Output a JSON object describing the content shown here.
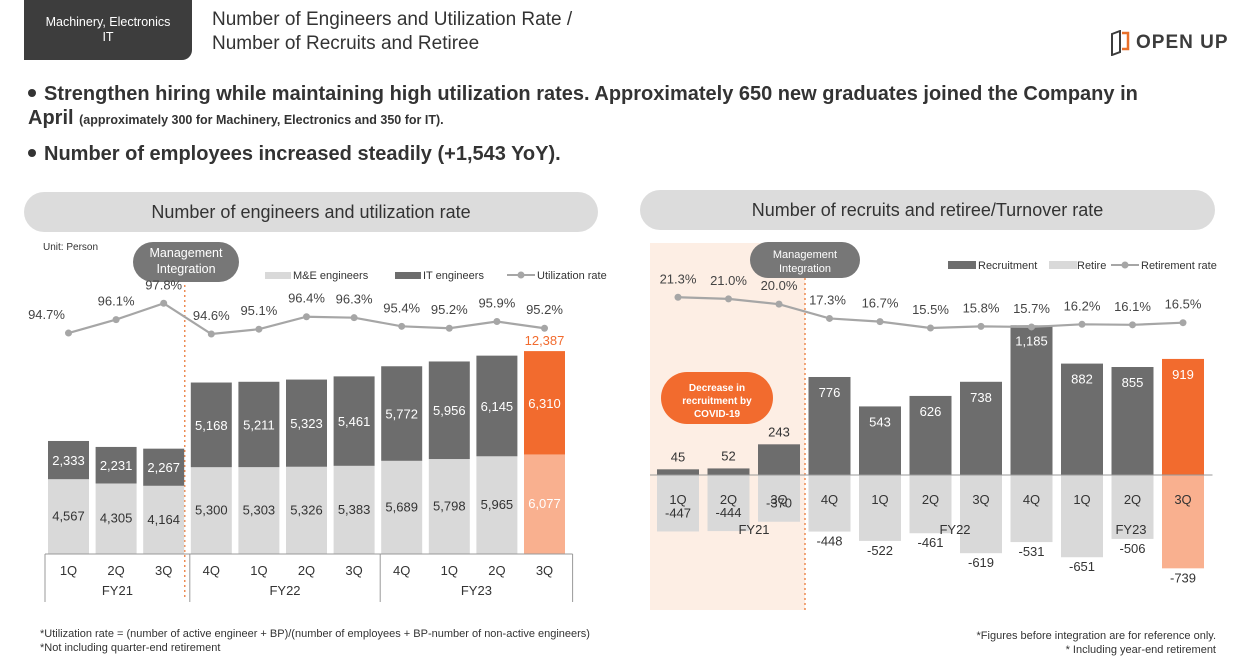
{
  "header": {
    "segment": "Machinery, Electronics\nIT",
    "title_line1": "Number of Engineers and Utilization Rate /",
    "title_line2": "Number of Recruits and Retiree",
    "logo": "OPEN UP"
  },
  "bullets": {
    "b1_main": "Strengthen hiring while maintaining high utilization rates. Approximately 650 new graduates joined the Company in",
    "b1_cont": "April",
    "b1_small": "(approximately 300 for Machinery, Electronics and 350 for IT).",
    "b2": "Number of employees increased steadily (+1,543 YoY)."
  },
  "left_panel": {
    "title": "Number of engineers and utilization rate",
    "unit": "Unit: Person",
    "mgmt_label": "Management Integration"
  },
  "right_panel": {
    "title": "Number of recruits and retiree/Turnover rate",
    "mgmt_label": "Management Integration",
    "callout": "Decrease in recruitment by COVID-19"
  },
  "footnotes": {
    "left1": "*Utilization rate = (number of active engineer + BP)/(number of employees + BP-number of non-active engineers)",
    "left2": "*Not including quarter-end retirement",
    "right1": "*Figures before integration are for reference only.",
    "right2": "* Including year-end retirement"
  },
  "colors": {
    "dark_bar": "#6d6d6d",
    "light_bar": "#d9d9d9",
    "highlight": "#f26b2e",
    "highlight_light": "#f9b08f",
    "line": "#a6a6a6",
    "shade": "#fdeee4"
  },
  "chart_data": [
    {
      "type": "bar",
      "stacked": true,
      "categories": [
        "1Q",
        "2Q",
        "3Q",
        "4Q",
        "1Q",
        "2Q",
        "3Q",
        "4Q",
        "1Q",
        "2Q",
        "3Q"
      ],
      "groups": [
        {
          "label": "FY21",
          "span": [
            0,
            2
          ]
        },
        {
          "label": "FY22",
          "span": [
            3,
            6
          ]
        },
        {
          "label": "FY23",
          "span": [
            7,
            10
          ]
        }
      ],
      "series": [
        {
          "name": "M&E engineers",
          "values": [
            4567,
            4305,
            4164,
            5300,
            5303,
            5326,
            5383,
            5689,
            5798,
            5965,
            6077
          ]
        },
        {
          "name": "IT engineers",
          "values": [
            2333,
            2231,
            2267,
            5168,
            5211,
            5323,
            5461,
            5772,
            5956,
            6145,
            6310
          ]
        },
        {
          "name": "Utilization rate",
          "values": [
            94.7,
            96.1,
            97.8,
            94.6,
            95.1,
            96.4,
            96.3,
            95.4,
            95.2,
            95.9,
            95.2
          ],
          "labels": [
            "94.7%",
            "96.1%",
            "97.8%",
            "94.6%",
            "95.1%",
            "96.4%",
            "96.3%",
            "95.4%",
            "95.2%",
            "95.9%",
            "95.2%"
          ]
        }
      ],
      "total_labels": [
        "",
        "",
        "",
        "",
        "",
        "",
        "",
        "",
        "",
        "",
        "12,387"
      ],
      "highlight_index": 10
    },
    {
      "type": "bar",
      "categories": [
        "1Q",
        "2Q",
        "3Q",
        "4Q",
        "1Q",
        "2Q",
        "3Q",
        "4Q",
        "1Q",
        "2Q",
        "3Q"
      ],
      "groups": [
        {
          "label": "FY21",
          "span": [
            0,
            2
          ]
        },
        {
          "label": "FY22",
          "span": [
            3,
            6
          ]
        },
        {
          "label": "FY23",
          "span": [
            7,
            10
          ]
        }
      ],
      "series": [
        {
          "name": "Recruitment",
          "values": [
            45,
            52,
            243,
            776,
            543,
            626,
            738,
            1185,
            882,
            855,
            919
          ]
        },
        {
          "name": "Retire",
          "values": [
            -447,
            -444,
            -370,
            -448,
            -522,
            -461,
            -619,
            -531,
            -651,
            -506,
            -739
          ]
        },
        {
          "name": "Retirement rate",
          "values": [
            21.3,
            21.0,
            20.0,
            17.3,
            16.7,
            15.5,
            15.8,
            15.7,
            16.2,
            16.1,
            16.5
          ],
          "labels": [
            "21.3%",
            "21.0%",
            "20.0%",
            "17.3%",
            "16.7%",
            "15.5%",
            "15.8%",
            "15.7%",
            "16.2%",
            "16.1%",
            "16.5%"
          ]
        }
      ],
      "highlight_index": 10
    }
  ]
}
